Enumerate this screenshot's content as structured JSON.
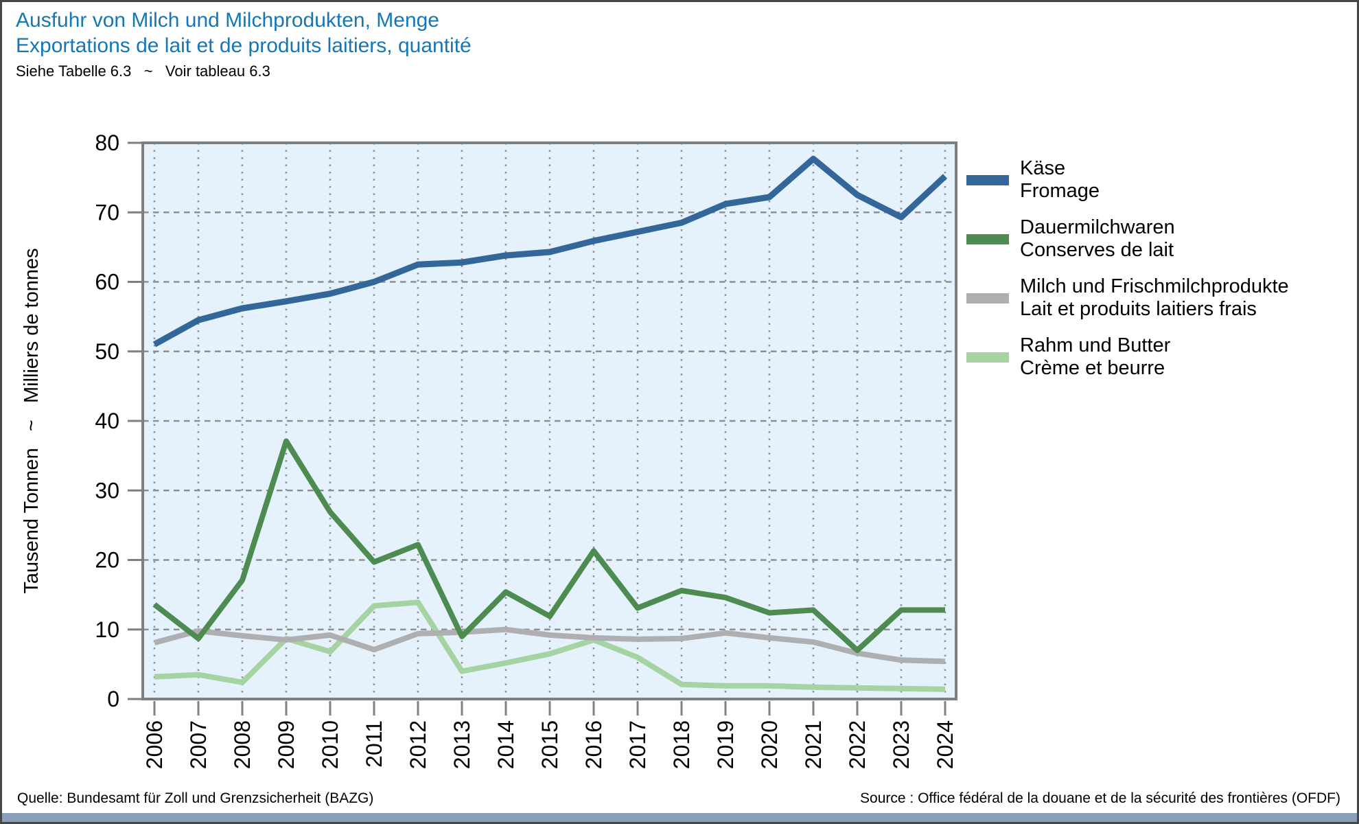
{
  "page": {
    "title_de": "Ausfuhr von Milch und Milchprodukten, Menge",
    "title_fr": "Exportations de lait et de produits laitiers, quantité",
    "subtitle": "Siehe Tabelle 6.3   ~   Voir tableau 6.3",
    "footer_left": "Quelle: Bundesamt für Zoll und Grenzsicherheit (BAZG)",
    "footer_right": "Source : Office fédéral de la douane et de la sécurité des frontières (OFDF)",
    "colors": {
      "title": "#1577B5",
      "border": "#474747",
      "footer_bar": "#8C9FB9"
    }
  },
  "chart_data": {
    "type": "line",
    "title": "Ausfuhr von Milch und Milchprodukten, Menge ~ Exportations de lait et de produits laitiers, quantité",
    "ylabel": "Tausend Tonnen   ~   Milliers de tonnes",
    "xlabel": "",
    "ylim": [
      0,
      80
    ],
    "ytick_step": 10,
    "yticks": [
      0,
      10,
      20,
      30,
      40,
      50,
      60,
      70,
      80
    ],
    "grid": true,
    "legend_position": "right",
    "plot_bg": "#E5F1FB",
    "frame_color": "#7F7F7F",
    "grid_color": "#8F8F8F",
    "categories": [
      "2006",
      "2007",
      "2008",
      "2009",
      "2010",
      "2011",
      "2012",
      "2013",
      "2014",
      "2015",
      "2016",
      "2017",
      "2018",
      "2019",
      "2020",
      "2021",
      "2022",
      "2023",
      "2024"
    ],
    "series": [
      {
        "id": "kaese",
        "label_de": "Käse",
        "label_fr": "Fromage",
        "color": "#336699",
        "width": 9,
        "values": [
          51.0,
          54.5,
          56.2,
          57.2,
          58.3,
          60.0,
          62.5,
          62.8,
          63.8,
          64.3,
          65.9,
          67.2,
          68.5,
          71.2,
          72.2,
          77.7,
          72.5,
          69.3,
          75.2
        ]
      },
      {
        "id": "dauermilchwaren",
        "label_de": "Dauermilchwaren",
        "label_fr": "Conserves de lait",
        "color": "#4E8B51",
        "width": 8,
        "values": [
          13.6,
          8.7,
          17.1,
          37.1,
          26.9,
          19.7,
          22.2,
          9.0,
          15.4,
          11.9,
          21.3,
          13.1,
          15.6,
          14.6,
          12.4,
          12.8,
          7.0,
          12.8,
          12.8
        ]
      },
      {
        "id": "milch-frischmilchprodukte",
        "label_de": "Milch und Frischmilchprodukte",
        "label_fr": "Lait et produits laitiers frais",
        "color": "#AFAFB1",
        "width": 8,
        "values": [
          8.1,
          9.8,
          9.1,
          8.5,
          9.2,
          7.1,
          9.4,
          9.6,
          10.0,
          9.2,
          8.8,
          8.6,
          8.7,
          9.5,
          8.8,
          8.2,
          6.6,
          5.6,
          5.4
        ]
      },
      {
        "id": "rahm-butter",
        "label_de": "Rahm und Butter",
        "label_fr": "Crème et beurre",
        "color": "#A5D3A2",
        "width": 8,
        "values": [
          3.2,
          3.5,
          2.4,
          8.7,
          6.8,
          13.4,
          13.9,
          4.0,
          5.2,
          6.5,
          8.5,
          6.0,
          2.1,
          1.9,
          1.9,
          1.7,
          1.6,
          1.5,
          1.4
        ]
      }
    ]
  }
}
